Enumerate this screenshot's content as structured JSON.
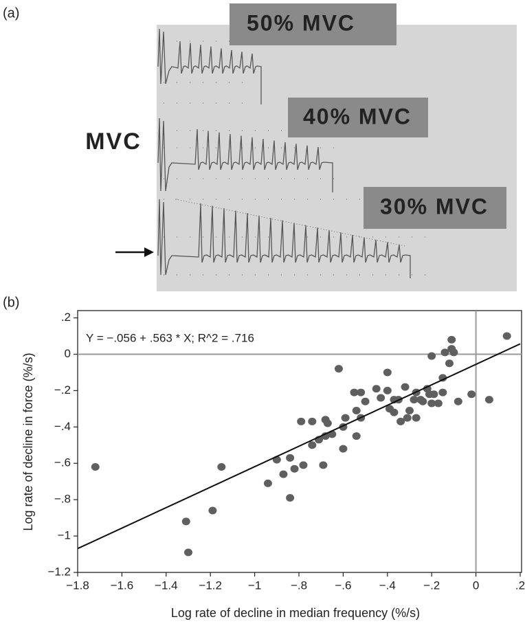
{
  "panel_a": {
    "label": "(a)",
    "side_label": "MVC",
    "boxes": [
      "50% MVC",
      "40% MVC",
      "30% MVC"
    ]
  },
  "chart_data": {
    "type": "scatter",
    "panel_label": "(b)",
    "annotation": "Y = −.056 + .563 * X; R^2 = .716",
    "x_label": "Log rate of decline in median frequency  (%/s)",
    "y_label": "Log rate of decline in force (%/s)",
    "color": "#5f5f5f",
    "x": [
      -1.72,
      -1.31,
      -1.3,
      -1.19,
      -1.15,
      -0.94,
      -0.9,
      -0.87,
      -0.84,
      -0.84,
      -0.82,
      -0.79,
      -0.78,
      -0.74,
      -0.74,
      -0.71,
      -0.69,
      -0.68,
      -0.68,
      -0.67,
      -0.65,
      -0.62,
      -0.6,
      -0.6,
      -0.59,
      -0.55,
      -0.54,
      -0.54,
      -0.52,
      -0.52,
      -0.5,
      -0.45,
      -0.43,
      -0.4,
      -0.4,
      -0.39,
      -0.37,
      -0.37,
      -0.35,
      -0.34,
      -0.32,
      -0.31,
      -0.3,
      -0.28,
      -0.27,
      -0.27,
      -0.25,
      -0.24,
      -0.22,
      -0.21,
      -0.2,
      -0.2,
      -0.19,
      -0.17,
      -0.15,
      -0.15,
      -0.14,
      -0.12,
      -0.11,
      -0.11,
      -0.1,
      -0.08,
      -0.02,
      0.06,
      0.14
    ],
    "values": [
      -0.62,
      -0.92,
      -1.09,
      -0.86,
      -0.62,
      -0.71,
      -0.58,
      -0.66,
      -0.57,
      -0.79,
      -0.63,
      -0.37,
      -0.61,
      -0.5,
      -0.37,
      -0.47,
      -0.61,
      -0.45,
      -0.36,
      -0.38,
      -0.44,
      -0.08,
      -0.52,
      -0.4,
      -0.35,
      -0.21,
      -0.31,
      -0.45,
      -0.21,
      -0.35,
      -0.26,
      -0.19,
      -0.24,
      -0.1,
      -0.2,
      -0.3,
      -0.25,
      -0.32,
      -0.25,
      -0.37,
      -0.18,
      -0.35,
      -0.31,
      -0.25,
      -0.21,
      -0.35,
      -0.25,
      -0.26,
      -0.19,
      -0.22,
      -0.27,
      -0.01,
      -0.22,
      -0.27,
      -0.21,
      -0.13,
      0.01,
      -0.05,
      0.08,
      0.03,
      0.01,
      -0.26,
      -0.22,
      -0.25,
      0.1
    ],
    "trend_line": {
      "x": [
        -1.8,
        0.2
      ],
      "values": [
        -1.069,
        0.057
      ]
    },
    "reference_lines": {
      "x": 0,
      "y": 0
    },
    "xlim": [
      -1.8,
      0.2
    ],
    "ylim": [
      -1.2,
      0.24
    ],
    "xticks": [
      {
        "value": -1.8,
        "label": "−1.8"
      },
      {
        "value": -1.6,
        "label": "−1.6"
      },
      {
        "value": -1.4,
        "label": "−1.4"
      },
      {
        "value": -1.2,
        "label": "−1.2"
      },
      {
        "value": -1,
        "label": "−1"
      },
      {
        "value": -0.8,
        "label": "−.8"
      },
      {
        "value": -0.6,
        "label": "−.6"
      },
      {
        "value": -0.4,
        "label": "−.4"
      },
      {
        "value": -0.2,
        "label": "−.2"
      },
      0,
      {
        "value": 0.2,
        "label": ".2"
      }
    ],
    "yticks": [
      {
        "value": 0.2,
        "label": ".2"
      },
      0,
      {
        "value": -0.2,
        "label": "−.2"
      },
      {
        "value": -0.4,
        "label": "−.4"
      },
      {
        "value": -0.6,
        "label": "−.6"
      },
      {
        "value": -0.8,
        "label": "−.8"
      },
      {
        "value": -1,
        "label": "−1"
      },
      {
        "value": -1.2,
        "label": "−1.2"
      }
    ]
  }
}
